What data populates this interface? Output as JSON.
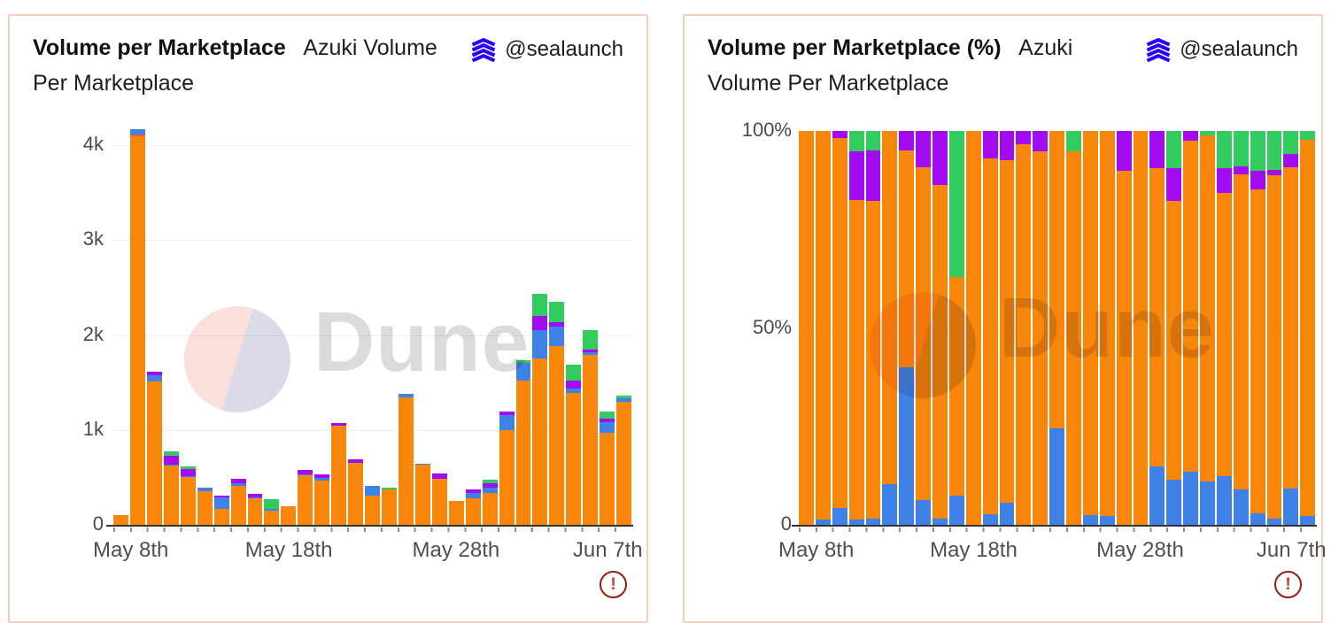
{
  "page": {
    "background": "#ffffff",
    "panel_border_color": "#F8CCBD",
    "watermark_pink": "#FBE0DA",
    "watermark_lavender": "#DBDAE8",
    "watermark_text_color": "#DBDBDB",
    "warning_color": "#9A1B12",
    "author_icon_color": "#2800FF"
  },
  "panels": [
    {
      "title": "Volume per Marketplace",
      "subtitle": "Azuki Volume Per Marketplace",
      "handle": "@sealaunch",
      "watermark": "Dune",
      "warning_glyph": "!"
    },
    {
      "title": "Volume per Marketplace (%)",
      "subtitle": "Azuki Volume Per Marketplace",
      "handle": "@sealaunch",
      "watermark": "Dune",
      "warning_glyph": "!"
    }
  ],
  "chart_data": [
    {
      "type": "bar",
      "stacked": true,
      "title": "Volume per Marketplace",
      "ylabel": "",
      "xlabel": "",
      "y_max": 4000,
      "ylim": [
        0,
        4400
      ],
      "grid": true,
      "legend": "none",
      "categories": [
        "May 8",
        "May 9",
        "May 10",
        "May 11",
        "May 12",
        "May 13",
        "May 14",
        "May 15",
        "May 16",
        "May 17",
        "May 18",
        "May 19",
        "May 20",
        "May 21",
        "May 22",
        "May 23",
        "May 24",
        "May 25",
        "May 26",
        "May 27",
        "May 28",
        "May 29",
        "May 30",
        "May 31",
        "Jun 1",
        "Jun 2",
        "Jun 3",
        "Jun 4",
        "Jun 5",
        "Jun 6",
        "Jun 7"
      ],
      "series": [
        {
          "name": "orange",
          "color": "#F8860B",
          "values": [
            100,
            4090,
            1510,
            625,
            500,
            350,
            170,
            410,
            280,
            150,
            200,
            520,
            465,
            1040,
            655,
            310,
            370,
            1345,
            630,
            485,
            250,
            280,
            340,
            1000,
            1520,
            1750,
            1880,
            1390,
            1790,
            970,
            1300
          ]
        },
        {
          "name": "red",
          "color": "#F0593F",
          "values": [
            0,
            25,
            0,
            0,
            0,
            0,
            0,
            0,
            0,
            0,
            0,
            0,
            0,
            0,
            0,
            0,
            0,
            0,
            0,
            0,
            0,
            0,
            0,
            0,
            0,
            0,
            0,
            0,
            0,
            0,
            0
          ]
        },
        {
          "name": "blue",
          "color": "#3E82E8",
          "values": [
            0,
            55,
            70,
            10,
            10,
            40,
            120,
            30,
            5,
            20,
            0,
            15,
            30,
            0,
            0,
            100,
            0,
            35,
            15,
            0,
            0,
            55,
            55,
            160,
            190,
            300,
            210,
            50,
            30,
            110,
            30
          ]
        },
        {
          "name": "purple",
          "color": "#A30BF2",
          "values": [
            0,
            0,
            30,
            95,
            80,
            0,
            15,
            45,
            45,
            0,
            0,
            40,
            40,
            35,
            35,
            0,
            0,
            0,
            0,
            55,
            0,
            35,
            40,
            30,
            0,
            150,
            50,
            80,
            30,
            40,
            0
          ]
        },
        {
          "name": "green",
          "color": "#32CB5D",
          "values": [
            0,
            0,
            0,
            40,
            30,
            0,
            0,
            0,
            0,
            100,
            0,
            0,
            0,
            0,
            0,
            0,
            20,
            0,
            0,
            0,
            0,
            0,
            45,
            0,
            20,
            230,
            210,
            170,
            200,
            70,
            30
          ]
        }
      ],
      "y_ticks": [
        {
          "label": "0",
          "value": 0
        },
        {
          "label": "1k",
          "value": 1000
        },
        {
          "label": "2k",
          "value": 2000
        },
        {
          "label": "3k",
          "value": 3000
        },
        {
          "label": "4k",
          "value": 4000
        }
      ],
      "gridlines": [
        1000,
        2000,
        3000,
        4000
      ],
      "x_ticks": [
        {
          "label": "May 8th",
          "index": 0
        },
        {
          "label": "May 18th",
          "index": 10
        },
        {
          "label": "May 28th",
          "index": 20
        },
        {
          "label": "Jun 7th",
          "index": 30
        }
      ]
    },
    {
      "type": "bar",
      "stacked": true,
      "unit": "%",
      "title": "Volume per Marketplace (%)",
      "ylabel": "",
      "xlabel": "",
      "y_max": 100,
      "ylim": [
        0,
        100
      ],
      "grid": true,
      "legend": "none",
      "categories": [
        "May 8",
        "May 9",
        "May 10",
        "May 11",
        "May 12",
        "May 13",
        "May 14",
        "May 15",
        "May 16",
        "May 17",
        "May 18",
        "May 19",
        "May 20",
        "May 21",
        "May 22",
        "May 23",
        "May 24",
        "May 25",
        "May 26",
        "May 27",
        "May 28",
        "May 29",
        "May 30",
        "May 31",
        "Jun 1",
        "Jun 2",
        "Jun 3",
        "Jun 4",
        "Jun 5",
        "Jun 6",
        "Jun 7"
      ],
      "series": [
        {
          "name": "blue",
          "color": "#3E82E8",
          "values": [
            0,
            1.3,
            4.3,
            1.3,
            1.6,
            10.3,
            40,
            6.2,
            1.5,
            7.4,
            0,
            2.6,
            5.6,
            0,
            0,
            24.4,
            0,
            2.5,
            2.3,
            0,
            0,
            14.9,
            11.5,
            13.4,
            11,
            12.3,
            8.9,
            3,
            1.5,
            9.2,
            2.2
          ]
        },
        {
          "name": "orange",
          "color": "#F8860B",
          "values": [
            100,
            98.7,
            93.8,
            81.2,
            80.6,
            89.7,
            55,
            84.5,
            84.9,
            55.6,
            100,
            90.4,
            86.9,
            96.7,
            94.9,
            75.6,
            94.9,
            97.5,
            97.7,
            89.8,
            100,
            75.7,
            70.8,
            84.1,
            87.8,
            72,
            80.1,
            82.2,
            87.2,
            81.5,
            95.6
          ]
        },
        {
          "name": "purple",
          "color": "#A30BF2",
          "values": [
            0,
            0,
            1.9,
            12.3,
            12.9,
            0,
            5,
            9.3,
            13.6,
            0,
            0,
            7,
            7.5,
            3.3,
            5.1,
            0,
            0,
            0,
            0,
            10.2,
            0,
            9.4,
            8.3,
            2.5,
            0,
            6.2,
            2.1,
            4.7,
            1.5,
            3.4,
            0
          ]
        },
        {
          "name": "green",
          "color": "#32CB5D",
          "values": [
            0,
            0,
            0,
            5.2,
            4.8,
            0,
            0,
            0,
            0,
            37,
            0,
            0,
            0,
            0,
            0,
            0,
            5.1,
            0,
            0,
            0,
            0,
            0,
            9.4,
            0,
            1.2,
            9.5,
            8.9,
            10.1,
            9.8,
            5.9,
            2.2
          ]
        }
      ],
      "y_ticks": [
        {
          "label": "0",
          "value": 0
        },
        {
          "label": "50%",
          "value": 50
        },
        {
          "label": "100%",
          "value": 100
        }
      ],
      "gridlines": [
        50,
        100
      ],
      "x_ticks": [
        {
          "label": "May 8th",
          "index": 0
        },
        {
          "label": "May 18th",
          "index": 10
        },
        {
          "label": "May 28th",
          "index": 20
        },
        {
          "label": "Jun 7th",
          "index": 30
        }
      ]
    }
  ]
}
